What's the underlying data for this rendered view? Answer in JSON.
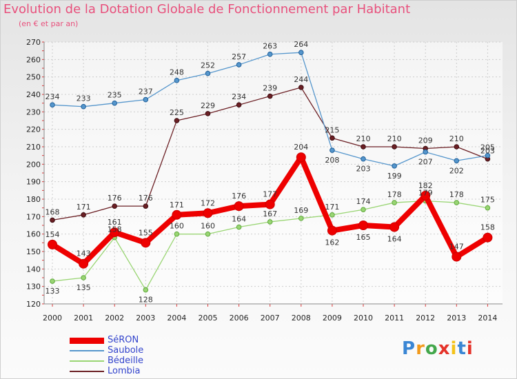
{
  "title": "Evolution de la Dotation Globale de Fonctionnement par Habitant",
  "subtitle": "(en € et par an)",
  "logo_text": "Proxiti",
  "chart_data": {
    "type": "line",
    "title": "Evolution de la Dotation Globale de Fonctionnement par Habitant",
    "subtitle": "(en € et par an)",
    "xlabel": "",
    "ylabel": "",
    "x": [
      "2000",
      "2001",
      "2002",
      "2003",
      "2004",
      "2005",
      "2006",
      "2007",
      "2008",
      "2009",
      "2010",
      "2011",
      "2012",
      "2013",
      "2014"
    ],
    "ylim": [
      120,
      270
    ],
    "yticks": [
      120,
      130,
      140,
      150,
      160,
      170,
      180,
      190,
      200,
      210,
      220,
      230,
      240,
      250,
      260,
      270
    ],
    "grid": true,
    "legend_position": "bottom-left",
    "series": [
      {
        "name": "Lombia",
        "color": "#6b1f24",
        "values": [
          168,
          171,
          176,
          176,
          225,
          229,
          234,
          239,
          244,
          215,
          210,
          210,
          209,
          210,
          203
        ]
      },
      {
        "name": "Saubole",
        "color": "#5596cc",
        "values": [
          234,
          233,
          235,
          237,
          248,
          252,
          257,
          263,
          264,
          208,
          203,
          199,
          207,
          202,
          205
        ]
      },
      {
        "name": "Bédeille",
        "color": "#99d573",
        "values": [
          133,
          135,
          158,
          128,
          160,
          160,
          164,
          167,
          169,
          171,
          174,
          178,
          179,
          178,
          175
        ]
      },
      {
        "name": "SéRON",
        "color": "#ee0000",
        "values": [
          154,
          143,
          161,
          155,
          171,
          172,
          176,
          177,
          204,
          162,
          165,
          164,
          182,
          147,
          158
        ]
      }
    ]
  }
}
